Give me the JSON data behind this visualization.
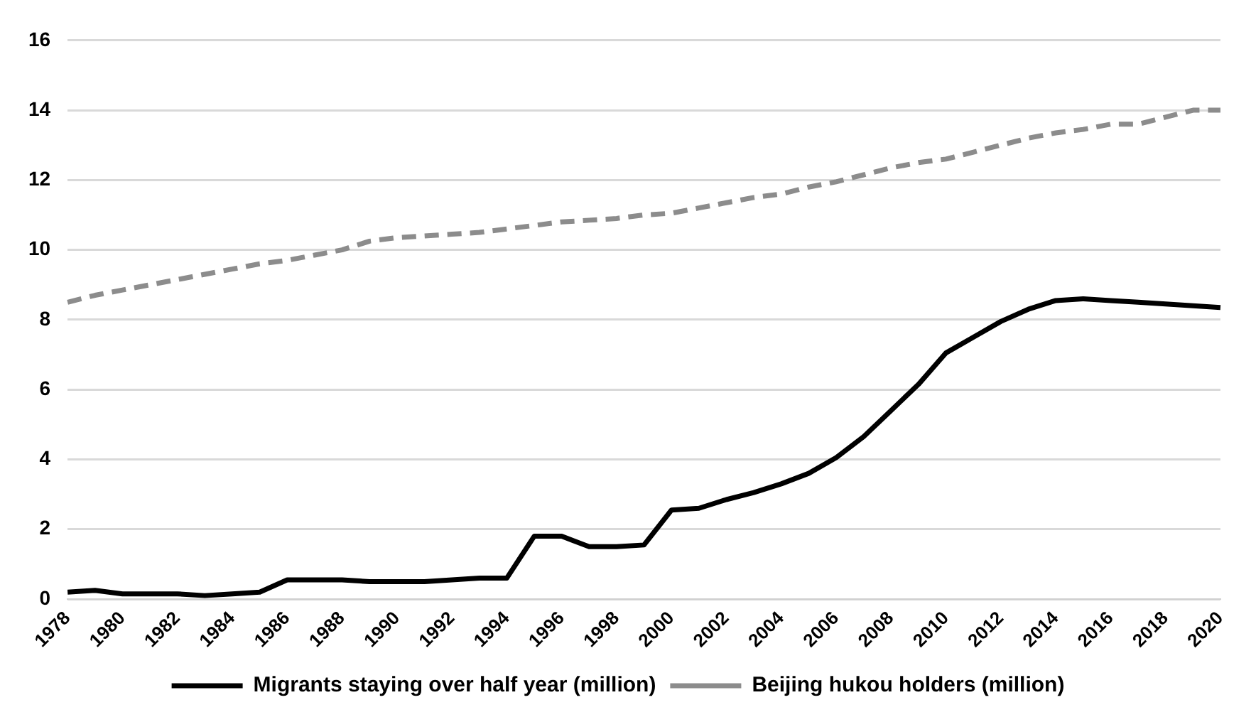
{
  "chart_data": {
    "type": "line",
    "categories": [
      "1978",
      null,
      "1980",
      null,
      "1982",
      null,
      "1984",
      null,
      "1986",
      null,
      "1988",
      null,
      "1990",
      null,
      "1992",
      null,
      "1994",
      null,
      "1996",
      null,
      "1998",
      null,
      "2000",
      null,
      "2002",
      null,
      "2004",
      null,
      "2006",
      null,
      "2008",
      null,
      "2010",
      null,
      "2012",
      null,
      "2014",
      null,
      "2016",
      null,
      "2018",
      null,
      "2020"
    ],
    "series": [
      {
        "name": "Migrants staying over half year (million)",
        "color": "#000000",
        "line_style": "solid",
        "values": [
          0.2,
          0.25,
          0.15,
          0.15,
          0.15,
          0.1,
          0.15,
          0.2,
          0.55,
          0.55,
          0.55,
          0.5,
          0.5,
          0.5,
          0.55,
          0.6,
          0.6,
          1.8,
          1.8,
          1.5,
          1.5,
          1.55,
          2.55,
          2.6,
          2.85,
          3.05,
          3.3,
          3.6,
          4.05,
          4.65,
          5.4,
          6.15,
          7.05,
          7.5,
          7.95,
          8.3,
          8.55,
          8.6,
          8.55,
          8.5,
          8.45,
          8.4,
          8.35
        ]
      },
      {
        "name": "Beijing hukou holders (million)",
        "color": "#8c8c8c",
        "line_style": "dashed",
        "values": [
          8.5,
          8.7,
          8.85,
          9.0,
          9.15,
          9.3,
          9.45,
          9.6,
          9.7,
          9.85,
          10.0,
          10.25,
          10.35,
          10.4,
          10.45,
          10.5,
          10.6,
          10.7,
          10.8,
          10.85,
          10.9,
          11.0,
          11.05,
          11.2,
          11.35,
          11.5,
          11.6,
          11.8,
          11.95,
          12.15,
          12.35,
          12.5,
          12.6,
          12.8,
          13.0,
          13.2,
          13.35,
          13.45,
          13.6,
          13.6,
          13.8,
          14.0,
          14.0
        ]
      }
    ],
    "ylim": [
      0,
      16
    ],
    "yticks": [
      0,
      2,
      4,
      6,
      8,
      10,
      12,
      14,
      16
    ],
    "grid": "y",
    "legend": "bottom",
    "marker": "none"
  }
}
